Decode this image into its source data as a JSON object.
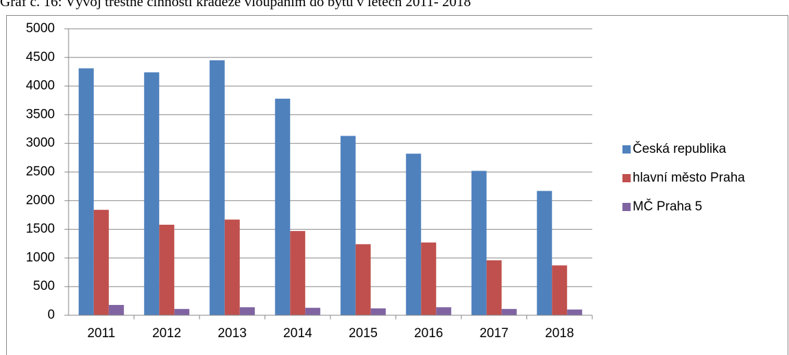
{
  "chart_data": {
    "type": "bar",
    "title": "Graf č. 16: Vývoj trestné činnosti krádeže vloupáním do bytu v letech 2011- 2018",
    "categories": [
      "2011",
      "2012",
      "2013",
      "2014",
      "2015",
      "2016",
      "2017",
      "2018"
    ],
    "series": [
      {
        "name": "Česká republika",
        "color": "#4f81bd",
        "values": [
          4310,
          4240,
          4450,
          3780,
          3130,
          2820,
          2520,
          2170
        ]
      },
      {
        "name": "hlavní město Praha",
        "color": "#c0504d",
        "values": [
          1840,
          1580,
          1670,
          1470,
          1240,
          1270,
          960,
          870
        ]
      },
      {
        "name": "MČ Praha 5",
        "color": "#8064a2",
        "values": [
          180,
          110,
          140,
          130,
          120,
          140,
          110,
          100
        ]
      }
    ],
    "ylim": [
      0,
      5000
    ],
    "yticks": [
      0,
      500,
      1000,
      1500,
      2000,
      2500,
      3000,
      3500,
      4000,
      4500,
      5000
    ],
    "grid": true,
    "legend": "right"
  }
}
